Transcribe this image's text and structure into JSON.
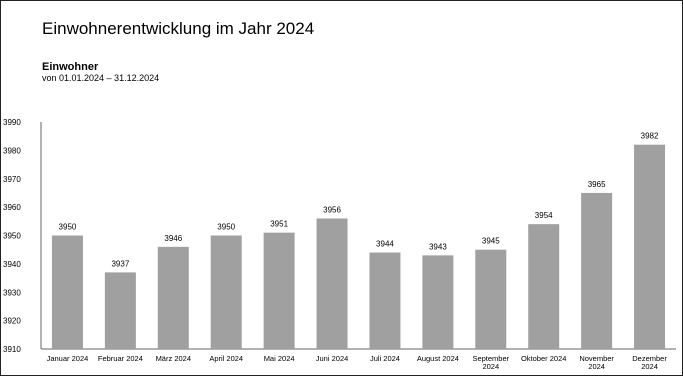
{
  "header": {
    "title": "Einwohnerentwicklung im Jahr 2024",
    "subtitle": "Einwohner",
    "date_range": "von 01.01.2024 – 31.12.2024"
  },
  "colors": {
    "bar": "#a0a0a0",
    "axis": "#666666",
    "text": "#000000"
  },
  "chart_data": {
    "type": "bar",
    "title": "Einwohnerentwicklung im Jahr 2024",
    "xlabel": "",
    "ylabel": "",
    "ylim": [
      3910,
      3990
    ],
    "yticks": [
      3910,
      3920,
      3930,
      3940,
      3950,
      3960,
      3970,
      3980,
      3990
    ],
    "grid": false,
    "legend": "none",
    "categories": [
      "Januar 2024",
      "Februar 2024",
      "März 2024",
      "April 2024",
      "Mai 2024",
      "Juni 2024",
      "Juli 2024",
      "August 2024",
      "September 2024",
      "Oktober 2024",
      "November 2024",
      "Dezember 2024"
    ],
    "category_lines": [
      [
        "Januar 2024"
      ],
      [
        "Februar 2024"
      ],
      [
        "März 2024"
      ],
      [
        "April 2024"
      ],
      [
        "Mai 2024"
      ],
      [
        "Juni 2024"
      ],
      [
        "Juli 2024"
      ],
      [
        "August 2024"
      ],
      [
        "September",
        "2024"
      ],
      [
        "Oktober 2024"
      ],
      [
        "November",
        "2024"
      ],
      [
        "Dezember",
        "2024"
      ]
    ],
    "values": [
      3950,
      3937,
      3946,
      3950,
      3951,
      3956,
      3944,
      3943,
      3945,
      3954,
      3965,
      3982
    ],
    "value_labels": [
      "3950",
      "3937",
      "3946",
      "3950",
      "3951",
      "3956",
      "3944",
      "3943",
      "3945",
      "3954",
      "3965",
      "3982"
    ]
  }
}
